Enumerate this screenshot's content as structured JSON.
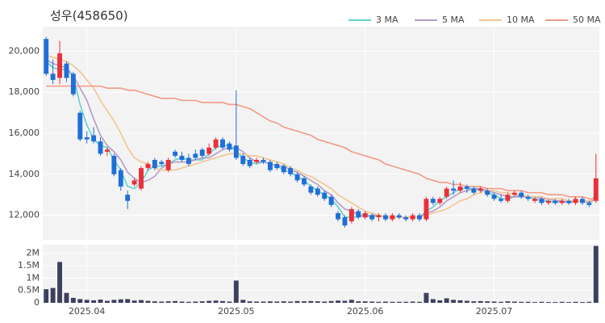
{
  "chart_data": [
    {
      "type": "candlestick",
      "title": "성우(458650)",
      "up_color": "#e8303a",
      "down_color": "#1f6fd8",
      "ylim": [
        10800,
        21200
      ],
      "yticks": [
        {
          "value": 12000,
          "label": "12,000"
        },
        {
          "value": 14000,
          "label": "14,000"
        },
        {
          "value": 16000,
          "label": "16,000"
        },
        {
          "value": 18000,
          "label": "18,000"
        },
        {
          "value": 20000,
          "label": "20,000"
        }
      ],
      "grid": true,
      "open": [
        20600,
        18900,
        18700,
        19400,
        18900,
        17000,
        15800,
        15900,
        15600,
        15100,
        14900,
        14200,
        13000,
        13500,
        13300,
        14300,
        14700,
        14600,
        14200,
        15100,
        14900,
        14800,
        15000,
        15200,
        15000,
        15300,
        15700,
        15500,
        15400,
        14900,
        14700,
        14600,
        14700,
        14600,
        14500,
        14400,
        14300,
        14000,
        13800,
        13400,
        13300,
        13100,
        12900,
        12100,
        11900,
        11700,
        12200,
        11900,
        12000,
        11900,
        12000,
        11800,
        12000,
        11900,
        11800,
        12000,
        11800,
        12800,
        12600,
        12900,
        13300,
        13200,
        13400,
        13300,
        13200,
        13200,
        13000,
        12800,
        12700,
        13000,
        13100,
        12900,
        12700,
        12800,
        12600,
        12700,
        12600,
        12700,
        12600,
        12800,
        12600,
        12700
      ],
      "high": [
        20700,
        19600,
        20500,
        19500,
        19000,
        17100,
        16100,
        16300,
        15800,
        15300,
        15000,
        14300,
        13200,
        13800,
        14400,
        14600,
        14800,
        14700,
        14800,
        15200,
        15100,
        15000,
        15200,
        15300,
        15500,
        15800,
        15800,
        15600,
        18100,
        15000,
        14800,
        14800,
        14800,
        14700,
        14600,
        14500,
        14400,
        14100,
        13900,
        13500,
        13400,
        13200,
        13000,
        12200,
        12000,
        12400,
        12300,
        12200,
        12100,
        12100,
        12100,
        12100,
        12100,
        12000,
        12100,
        12100,
        12900,
        12900,
        12900,
        13400,
        13700,
        13600,
        13500,
        13400,
        13400,
        13300,
        13100,
        13000,
        13100,
        13200,
        13200,
        13000,
        12900,
        12900,
        12800,
        12800,
        12800,
        12800,
        12900,
        12900,
        12700,
        15000
      ],
      "low": [
        18800,
        18400,
        18400,
        18500,
        17800,
        15600,
        15500,
        15500,
        14900,
        14900,
        13900,
        13200,
        12300,
        13400,
        13200,
        14200,
        14200,
        14400,
        14100,
        14800,
        14600,
        14400,
        14700,
        14800,
        14900,
        15200,
        15200,
        15100,
        14700,
        14400,
        14300,
        14500,
        14500,
        14100,
        14200,
        14000,
        13900,
        13600,
        13400,
        13000,
        12900,
        12700,
        12400,
        11700,
        11400,
        11600,
        11800,
        11800,
        11700,
        11700,
        11700,
        11700,
        11800,
        11700,
        11700,
        11700,
        11700,
        12500,
        12500,
        12800,
        13000,
        13100,
        13100,
        13000,
        13100,
        12900,
        12700,
        12600,
        12600,
        12900,
        12800,
        12700,
        12600,
        12500,
        12500,
        12500,
        12500,
        12500,
        12500,
        12500,
        12400,
        12600
      ],
      "close": [
        18900,
        18600,
        19900,
        18700,
        17900,
        15700,
        15700,
        15600,
        15000,
        15200,
        14000,
        13400,
        12700,
        13700,
        14300,
        14500,
        14300,
        14500,
        14700,
        14900,
        14700,
        14500,
        14800,
        14900,
        15300,
        15700,
        15300,
        15200,
        14800,
        14500,
        14400,
        14700,
        14600,
        14200,
        14300,
        14100,
        14000,
        13700,
        13500,
        13100,
        13000,
        12800,
        12500,
        11800,
        11500,
        12300,
        11900,
        12100,
        11800,
        12000,
        11800,
        12000,
        11900,
        11800,
        12000,
        11800,
        12800,
        12600,
        12800,
        13300,
        13200,
        13400,
        13300,
        13100,
        13300,
        13000,
        12800,
        12700,
        13000,
        13100,
        12900,
        12800,
        12800,
        12600,
        12700,
        12600,
        12700,
        12600,
        12800,
        12600,
        12500,
        13800
      ],
      "series": [
        {
          "name": "3 MA",
          "color": "#62d1cf",
          "values": [
            19500,
            19200,
            19100,
            19100,
            18800,
            17400,
            16400,
            15700,
            15400,
            15300,
            14700,
            14200,
            13400,
            13300,
            13600,
            14200,
            14400,
            14400,
            14500,
            14700,
            14800,
            14700,
            14700,
            14700,
            15000,
            15300,
            15400,
            15400,
            15100,
            14800,
            14600,
            14500,
            14600,
            14500,
            14400,
            14200,
            14100,
            13900,
            13700,
            13400,
            13200,
            13000,
            12800,
            12400,
            11900,
            11900,
            11900,
            12100,
            11900,
            12000,
            11900,
            11900,
            11900,
            11900,
            11900,
            11900,
            12200,
            12400,
            12700,
            12900,
            13100,
            13300,
            13300,
            13300,
            13200,
            13100,
            13000,
            12800,
            12800,
            12900,
            13000,
            12900,
            12800,
            12700,
            12700,
            12600,
            12700,
            12600,
            12700,
            12700,
            12600,
            13000
          ]
        },
        {
          "name": "5 MA",
          "color": "#b39bc9",
          "values": [
            19600,
            19400,
            19300,
            19200,
            18800,
            18200,
            17600,
            16700,
            15900,
            15400,
            15100,
            14700,
            14100,
            13800,
            13600,
            13700,
            13900,
            14300,
            14500,
            14600,
            14600,
            14600,
            14700,
            14800,
            14800,
            15000,
            15200,
            15300,
            15300,
            15100,
            14800,
            14600,
            14600,
            14500,
            14400,
            14400,
            14200,
            14100,
            13900,
            13700,
            13500,
            13200,
            13000,
            12600,
            12300,
            12200,
            12000,
            11900,
            12000,
            12000,
            11900,
            11900,
            11900,
            11900,
            11900,
            11900,
            12100,
            12200,
            12400,
            12700,
            12900,
            13100,
            13200,
            13300,
            13300,
            13200,
            13100,
            13000,
            12900,
            12900,
            12900,
            12900,
            12900,
            12800,
            12800,
            12700,
            12700,
            12600,
            12700,
            12700,
            12600,
            12800
          ]
        },
        {
          "name": "10 MA",
          "color": "#f2c591",
          "values": [
            19800,
            19700,
            19600,
            19500,
            19300,
            19000,
            18600,
            18200,
            17600,
            17100,
            16600,
            16000,
            15300,
            14800,
            14600,
            14500,
            14300,
            14200,
            14200,
            14200,
            14300,
            14400,
            14500,
            14600,
            14700,
            14800,
            14900,
            15000,
            15000,
            15000,
            14900,
            14900,
            14800,
            14700,
            14600,
            14500,
            14300,
            14200,
            14000,
            13900,
            13700,
            13500,
            13300,
            13000,
            12800,
            12600,
            12400,
            12200,
            12100,
            12000,
            11900,
            11900,
            11900,
            11900,
            11900,
            11900,
            12000,
            12100,
            12200,
            12300,
            12500,
            12700,
            12800,
            13000,
            13100,
            13200,
            13200,
            13100,
            13100,
            13000,
            13000,
            12900,
            12900,
            12900,
            12800,
            12800,
            12800,
            12700,
            12700,
            12700,
            12700,
            12800
          ]
        },
        {
          "name": "50 MA",
          "color": "#f29a86",
          "values": [
            18300,
            18300,
            18300,
            18300,
            18300,
            18300,
            18300,
            18300,
            18300,
            18200,
            18200,
            18200,
            18100,
            18100,
            18000,
            17900,
            17800,
            17700,
            17700,
            17700,
            17600,
            17600,
            17600,
            17500,
            17500,
            17500,
            17500,
            17400,
            17400,
            17300,
            17200,
            17000,
            16800,
            16600,
            16500,
            16300,
            16200,
            16100,
            16000,
            15900,
            15700,
            15600,
            15500,
            15400,
            15300,
            15100,
            15000,
            14900,
            14800,
            14700,
            14500,
            14400,
            14300,
            14200,
            14100,
            14000,
            13800,
            13700,
            13600,
            13600,
            13500,
            13500,
            13400,
            13400,
            13400,
            13300,
            13300,
            13300,
            13200,
            13200,
            13200,
            13100,
            13100,
            13100,
            13000,
            13000,
            13000,
            12900,
            12900,
            12900,
            12800,
            12800
          ]
        }
      ]
    },
    {
      "type": "bar",
      "color": "#3d3f5f",
      "ylim": [
        0,
        2350000
      ],
      "yticks": [
        0,
        {
          "value": 500000,
          "label": "0.5M"
        },
        {
          "value": 1000000,
          "label": "1M"
        },
        {
          "value": 1500000,
          "label": "1.5M"
        },
        {
          "value": 2000000,
          "label": "2M"
        }
      ],
      "grid": true,
      "categories": [
        null,
        null,
        null,
        null,
        null,
        null,
        "2025.04",
        null,
        null,
        null,
        null,
        null,
        null,
        null,
        null,
        null,
        null,
        null,
        null,
        null,
        null,
        null,
        null,
        null,
        null,
        null,
        null,
        null,
        "2025.05",
        null,
        null,
        null,
        null,
        null,
        null,
        null,
        null,
        null,
        null,
        null,
        null,
        null,
        null,
        null,
        null,
        null,
        null,
        "2025.06",
        null,
        null,
        null,
        null,
        null,
        null,
        null,
        null,
        null,
        null,
        null,
        null,
        null,
        null,
        null,
        null,
        null,
        null,
        "2025.07",
        null,
        null,
        null,
        null,
        null,
        null,
        null,
        null,
        null,
        null,
        null,
        null,
        null,
        null,
        null
      ],
      "values": [
        550000,
        600000,
        1650000,
        400000,
        200000,
        150000,
        120000,
        100000,
        130000,
        80000,
        120000,
        140000,
        150000,
        90000,
        110000,
        80000,
        60000,
        50000,
        60000,
        70000,
        50000,
        40000,
        50000,
        60000,
        80000,
        90000,
        70000,
        50000,
        900000,
        120000,
        60000,
        50000,
        50000,
        60000,
        50000,
        60000,
        50000,
        70000,
        60000,
        70000,
        60000,
        50000,
        70000,
        90000,
        80000,
        120000,
        60000,
        60000,
        50000,
        40000,
        50000,
        40000,
        40000,
        40000,
        50000,
        40000,
        400000,
        150000,
        100000,
        180000,
        120000,
        100000,
        80000,
        60000,
        70000,
        60000,
        50000,
        40000,
        60000,
        50000,
        40000,
        40000,
        30000,
        40000,
        30000,
        30000,
        40000,
        30000,
        40000,
        30000,
        40000,
        2300000
      ]
    }
  ]
}
